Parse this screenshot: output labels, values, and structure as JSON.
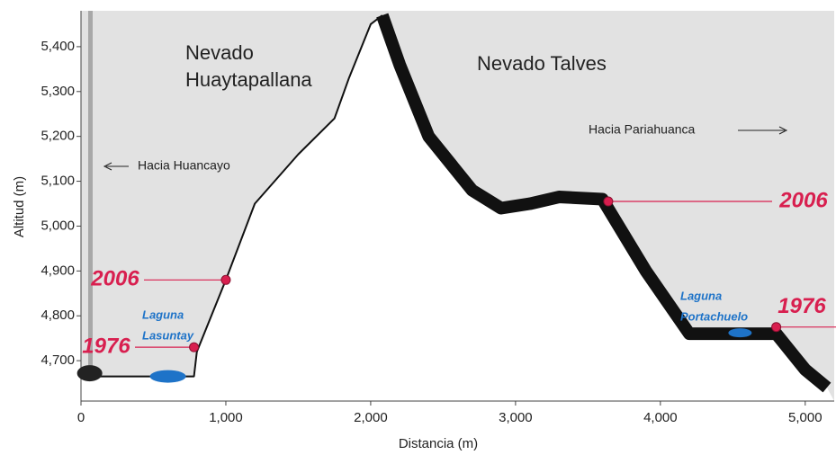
{
  "chart_data": {
    "type": "line",
    "x_label": "Distancia (m)",
    "y_label": "Altitud  (m)",
    "xlim": [
      0,
      5200
    ],
    "ylim": [
      4610,
      5480
    ],
    "xticks": [
      0,
      {
        "value": 1000,
        "label": "1,000"
      },
      {
        "value": 2000,
        "label": "2,000"
      },
      {
        "value": 3000,
        "label": "3,000"
      },
      {
        "value": 4000,
        "label": "4,000"
      },
      {
        "value": 5000,
        "label": "5,000"
      }
    ],
    "yticks": [
      {
        "value": 4700,
        "label": "4,700"
      },
      {
        "value": 4800,
        "label": "4,800"
      },
      {
        "value": 4900,
        "label": "4,900"
      },
      {
        "value": 5000,
        "label": "5,000"
      },
      {
        "value": 5100,
        "label": "5,100"
      },
      {
        "value": 5200,
        "label": "5,200"
      },
      {
        "value": 5300,
        "label": "5,300"
      },
      {
        "value": 5400,
        "label": "5,400"
      }
    ],
    "series": [
      {
        "color": "#111111",
        "line_width": 2,
        "x": [
          0,
          780,
          800,
          1000,
          1200,
          1500,
          1750,
          1850,
          2000,
          2080
        ],
        "values": [
          4665,
          4665,
          4720,
          4880,
          5050,
          5160,
          5240,
          5330,
          5450,
          5470
        ]
      },
      {
        "color": "#111111",
        "line_width": 14,
        "x": [
          2080,
          2200,
          2400,
          2700,
          2900,
          3100,
          3300,
          3600,
          3900,
          4200,
          4500,
          4800,
          5000,
          5150
        ],
        "values": [
          5470,
          5360,
          5200,
          5080,
          5040,
          5050,
          5065,
          5060,
          4900,
          4760,
          4760,
          4760,
          4680,
          4640
        ]
      }
    ],
    "markers": [
      {
        "label": "2006",
        "x": 1000,
        "y": 4880
      },
      {
        "label": "1976",
        "x": 780,
        "y": 4730
      },
      {
        "label": "2006",
        "x": 3640,
        "y": 5055
      },
      {
        "label": "1976",
        "x": 4800,
        "y": 4775
      }
    ],
    "marker_color": "#d81f4f",
    "annotations": [
      "Nevado",
      "Huaytapallana",
      "Nevado Talves",
      "Hacia Pariahuanca",
      "Hacia Huancayo",
      "Laguna",
      "Lasuntay",
      "Laguna",
      "Portachuelo"
    ]
  }
}
